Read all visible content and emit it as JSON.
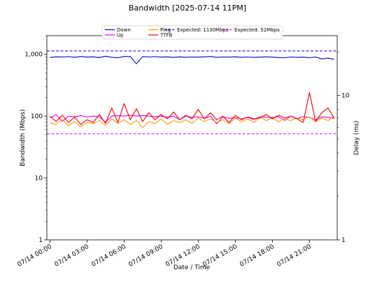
{
  "chart_data": {
    "type": "line",
    "title": "Bandwidth [2025-07-14 11PM]",
    "xlabel": "Date / Time",
    "ylabel_left": "Bandwidth (Mbps)",
    "ylabel_right": "Delay (ms)",
    "left_axis": {
      "scale": "log",
      "ylim": [
        1,
        2000
      ],
      "ticks": [
        1,
        10,
        100,
        1000
      ],
      "tick_labels": [
        "1",
        "10",
        "100",
        "1,000"
      ]
    },
    "right_axis": {
      "scale": "log",
      "ylim": [
        1,
        26
      ],
      "ticks": [
        1,
        10
      ],
      "tick_labels": [
        "1",
        "10"
      ]
    },
    "xlim_hours": [
      -0.25,
      23.25
    ],
    "x_ticks": [
      {
        "hour": 0,
        "label": "07/14 00:00"
      },
      {
        "hour": 3,
        "label": "07/14 03:00"
      },
      {
        "hour": 6,
        "label": "07/14 06:00"
      },
      {
        "hour": 9,
        "label": "07/14 09:00"
      },
      {
        "hour": 12,
        "label": "07/14 12:00"
      },
      {
        "hour": 15,
        "label": "07/14 15:00"
      },
      {
        "hour": 18,
        "label": "07/14 18:00"
      },
      {
        "hour": 21,
        "label": "07/14 21:00"
      }
    ],
    "grid": false,
    "legend_placement": "top-center",
    "series": [
      {
        "name": "Down",
        "axis": "left",
        "color": "#0000cc",
        "style": "solid",
        "x": [
          0,
          0.5,
          1,
          1.5,
          2,
          2.5,
          3,
          3.5,
          4,
          4.5,
          5,
          5.5,
          6,
          6.5,
          7,
          7.5,
          8,
          8.5,
          9,
          9.5,
          10,
          10.5,
          11,
          11.5,
          12,
          12.5,
          13,
          13.5,
          14,
          14.5,
          15,
          15.5,
          16,
          16.5,
          17,
          17.5,
          18,
          18.5,
          19,
          19.5,
          20,
          20.5,
          21,
          21.5,
          22,
          22.5,
          23
        ],
        "y": [
          890,
          910,
          905,
          915,
          895,
          920,
          900,
          910,
          885,
          930,
          895,
          880,
          920,
          920,
          700,
          920,
          905,
          915,
          900,
          910,
          890,
          910,
          895,
          905,
          900,
          910,
          920,
          890,
          905,
          900,
          910,
          895,
          905,
          890,
          900,
          910,
          900,
          885,
          880,
          905,
          890,
          900,
          880,
          905,
          840,
          870,
          830
        ]
      },
      {
        "name": "Up",
        "axis": "left",
        "color": "#ee00ee",
        "style": "solid",
        "x": [
          0,
          0.5,
          1,
          1.5,
          2,
          2.5,
          3,
          3.5,
          4,
          4.5,
          5,
          5.5,
          6,
          6.5,
          7,
          7.5,
          8,
          8.5,
          9,
          9.5,
          10,
          10.5,
          11,
          11.5,
          12,
          12.5,
          13,
          13.5,
          14,
          14.5,
          15,
          15.5,
          16,
          16.5,
          17,
          17.5,
          18,
          18.5,
          19,
          19.5,
          20,
          20.5,
          21,
          21.5,
          22,
          22.5,
          23
        ],
        "y": [
          95,
          105,
          82,
          100,
          98,
          102,
          97,
          100,
          98,
          80,
          100,
          102,
          100,
          104,
          100,
          102,
          100,
          98,
          100,
          96,
          100,
          88,
          100,
          96,
          98,
          92,
          100,
          75,
          98,
          92,
          95,
          90,
          96,
          88,
          98,
          96,
          95,
          98,
          85,
          100,
          92,
          98,
          95,
          88,
          98,
          96,
          92
        ]
      },
      {
        "name": "Expected: 1130Mbps",
        "axis": "left",
        "color": "#0000cc",
        "style": "dashed",
        "x": [
          -0.25,
          23.25
        ],
        "y": [
          1130,
          1130
        ]
      },
      {
        "name": "Expected: 52Mbps",
        "axis": "left",
        "color": "#ee00ee",
        "style": "dashed",
        "x": [
          -0.25,
          23.25
        ],
        "y": [
          52,
          52
        ]
      },
      {
        "name": "Ping",
        "axis": "right",
        "color": "#ff9900",
        "style": "solid",
        "x": [
          0,
          0.5,
          1,
          1.5,
          2,
          2.5,
          3,
          3.5,
          4,
          4.5,
          5,
          5.5,
          6,
          6.5,
          7,
          7.5,
          8,
          8.5,
          9,
          9.5,
          10,
          10.5,
          11,
          11.5,
          12,
          12.5,
          13,
          13.5,
          14,
          14.5,
          15,
          15.5,
          16,
          16.5,
          17,
          17.5,
          18,
          18.5,
          19,
          19.5,
          20,
          20.5,
          21,
          21.5,
          22,
          22.5,
          23
        ],
        "y": [
          6.5,
          6.3,
          6.8,
          6.2,
          6.6,
          6.1,
          6.5,
          6.4,
          6.7,
          6.2,
          6.9,
          6.4,
          6.8,
          6.3,
          6.7,
          6.0,
          6.6,
          6.4,
          6.9,
          6.3,
          6.7,
          6.5,
          6.8,
          6.4,
          7.0,
          6.6,
          6.9,
          6.5,
          6.8,
          6.4,
          7.0,
          6.6,
          6.9,
          6.5,
          7.1,
          6.7,
          7.0,
          6.6,
          6.9,
          6.7,
          7.0,
          6.8,
          7.1,
          6.6,
          7.0,
          6.7,
          7.2
        ]
      },
      {
        "name": "TTFB",
        "axis": "right",
        "color": "#ee0000",
        "style": "solid",
        "x": [
          0,
          0.5,
          1,
          1.5,
          2,
          2.5,
          3,
          3.5,
          4,
          4.5,
          5,
          5.5,
          6,
          6.5,
          7,
          7.5,
          8,
          8.5,
          9,
          9.5,
          10,
          10.5,
          11,
          11.5,
          12,
          12.5,
          13,
          13.5,
          14,
          14.5,
          15,
          15.5,
          16,
          16.5,
          17,
          17.5,
          18,
          18.5,
          19,
          19.5,
          20,
          20.5,
          21,
          21.5,
          22,
          22.5,
          23
        ],
        "y": [
          7.2,
          6.6,
          7.3,
          6.5,
          7.1,
          6.3,
          6.8,
          6.5,
          7.4,
          6.4,
          8.2,
          6.5,
          8.8,
          6.8,
          8.1,
          6.6,
          7.6,
          6.8,
          7.4,
          6.9,
          7.7,
          6.8,
          7.3,
          6.9,
          8.0,
          6.9,
          7.6,
          6.8,
          7.2,
          6.5,
          7.3,
          6.8,
          7.1,
          6.9,
          7.0,
          7.4,
          6.9,
          7.3,
          7.0,
          7.2,
          6.9,
          6.5,
          10.5,
          6.6,
          7.6,
          8.2,
          7.0
        ]
      }
    ],
    "legend": [
      {
        "label": "Down",
        "color": "#0000cc",
        "style": "solid"
      },
      {
        "label": "Up",
        "color": "#ee00ee",
        "style": "solid"
      },
      {
        "label": "Ping",
        "color": "#ff9900",
        "style": "solid"
      },
      {
        "label": "TTFB",
        "color": "#ee0000",
        "style": "solid"
      },
      {
        "label": "Expected: 1130Mbps",
        "color": "#0000cc",
        "style": "dashed"
      },
      {
        "label": "Expected: 52Mbps",
        "color": "#ee00ee",
        "style": "dashed"
      }
    ]
  }
}
